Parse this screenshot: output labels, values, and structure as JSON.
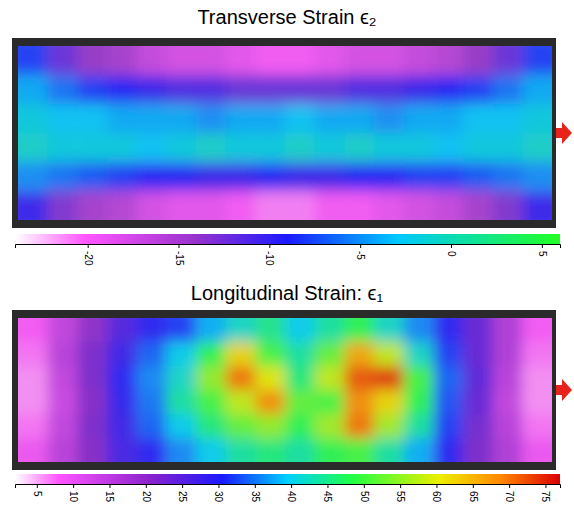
{
  "chart_data": [
    {
      "type": "heatmap",
      "title": "Transverse Strain ϵ₂",
      "cells": [
        [
          -8,
          -12,
          -14,
          -15,
          -17,
          -18,
          -18,
          -19,
          -20,
          -20,
          -19,
          -18,
          -18,
          -17,
          -16,
          -14,
          -12,
          -8
        ],
        [
          -4,
          -6,
          -8,
          -9,
          -10,
          -11,
          -11,
          -12,
          -12,
          -12,
          -12,
          -11,
          -11,
          -10,
          -9,
          -8,
          -6,
          -4
        ],
        [
          -2,
          -3,
          -3,
          -4,
          -4,
          -4,
          -5,
          -4,
          -4,
          -3,
          -4,
          -4,
          -5,
          -4,
          -4,
          -3,
          -3,
          -2
        ],
        [
          -1,
          -2,
          -2,
          -2,
          -3,
          -2,
          -1,
          -2,
          -2,
          -1,
          -2,
          -1,
          -2,
          -2,
          -3,
          -2,
          -2,
          -1
        ],
        [
          -5,
          -6,
          -7,
          -8,
          -9,
          -9,
          -10,
          -10,
          -9,
          -10,
          -10,
          -9,
          -9,
          -8,
          -8,
          -7,
          -6,
          -5
        ],
        [
          -10,
          -13,
          -15,
          -16,
          -18,
          -19,
          -19,
          -20,
          -21,
          -21,
          -20,
          -20,
          -19,
          -18,
          -17,
          -15,
          -13,
          -10
        ]
      ],
      "colorbar_range": [
        -24,
        6
      ],
      "colorbar_ticks": [
        -20,
        -15,
        -10,
        -5,
        0,
        5
      ]
    },
    {
      "type": "heatmap",
      "title": "Longitudinal Strain: ϵ₁",
      "cells": [
        [
          8,
          14,
          20,
          26,
          30,
          32,
          38,
          42,
          45,
          40,
          44,
          48,
          42,
          36,
          30,
          24,
          16,
          8
        ],
        [
          7,
          15,
          22,
          28,
          34,
          40,
          48,
          62,
          50,
          44,
          52,
          66,
          58,
          42,
          32,
          24,
          16,
          7
        ],
        [
          6,
          14,
          22,
          30,
          36,
          42,
          55,
          70,
          60,
          46,
          58,
          72,
          74,
          50,
          34,
          25,
          15,
          6
        ],
        [
          6,
          13,
          21,
          29,
          35,
          44,
          50,
          58,
          68,
          52,
          50,
          68,
          62,
          48,
          33,
          24,
          14,
          6
        ],
        [
          7,
          14,
          22,
          28,
          34,
          40,
          46,
          52,
          55,
          48,
          56,
          70,
          56,
          44,
          32,
          23,
          15,
          7
        ],
        [
          9,
          15,
          21,
          27,
          30,
          36,
          40,
          44,
          46,
          44,
          48,
          50,
          44,
          38,
          30,
          22,
          16,
          9
        ]
      ],
      "colorbar_range": [
        2,
        77
      ],
      "colorbar_ticks": [
        5,
        10,
        15,
        20,
        25,
        30,
        35,
        40,
        45,
        50,
        55,
        60,
        65,
        70,
        75
      ]
    }
  ]
}
